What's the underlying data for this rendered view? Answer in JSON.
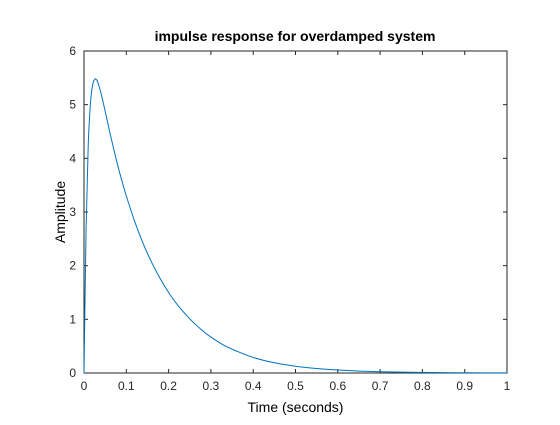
{
  "chart_data": {
    "type": "line",
    "title": "impulse response  for overdamped system",
    "xlabel": "Time (seconds)",
    "ylabel": "Amplitude",
    "xlim": [
      0,
      1
    ],
    "ylim": [
      0,
      6
    ],
    "xticks": [
      0,
      0.1,
      0.2,
      0.3,
      0.4,
      0.5,
      0.6,
      0.7,
      0.8,
      0.9,
      1
    ],
    "xtick_labels": [
      "0",
      "0.1",
      "0.2",
      "0.3",
      "0.4",
      "0.5",
      "0.6",
      "0.7",
      "0.8",
      "0.9",
      "1"
    ],
    "yticks": [
      0,
      1,
      2,
      3,
      4,
      5,
      6
    ],
    "ytick_labels": [
      "0",
      "1",
      "2",
      "3",
      "4",
      "5",
      "6"
    ],
    "grid": false,
    "legend": "none",
    "series_color": "#0072BD",
    "axis_color": "#262626",
    "series": [
      {
        "x": [
          0,
          0.005,
          0.01,
          0.015,
          0.02,
          0.025,
          0.03,
          0.035,
          0.04,
          0.05,
          0.06,
          0.07,
          0.08,
          0.09,
          0.1,
          0.12,
          0.14,
          0.16,
          0.18,
          0.2,
          0.22,
          0.25,
          0.28,
          0.3,
          0.33,
          0.36,
          0.4,
          0.45,
          0.5,
          0.55,
          0.6,
          0.65,
          0.7,
          0.75,
          0.8,
          0.85,
          0.9,
          0.95,
          1
        ],
        "y": [
          0,
          2.7,
          4.25,
          5.0,
          5.35,
          5.47,
          5.46,
          5.36,
          5.22,
          4.88,
          4.52,
          4.18,
          3.86,
          3.57,
          3.3,
          2.82,
          2.41,
          2.06,
          1.76,
          1.5,
          1.28,
          1.01,
          0.79,
          0.67,
          0.52,
          0.41,
          0.29,
          0.19,
          0.126,
          0.083,
          0.055,
          0.036,
          0.024,
          0.016,
          0.011,
          0.007,
          0.005,
          0.003,
          0.002
        ]
      }
    ]
  }
}
